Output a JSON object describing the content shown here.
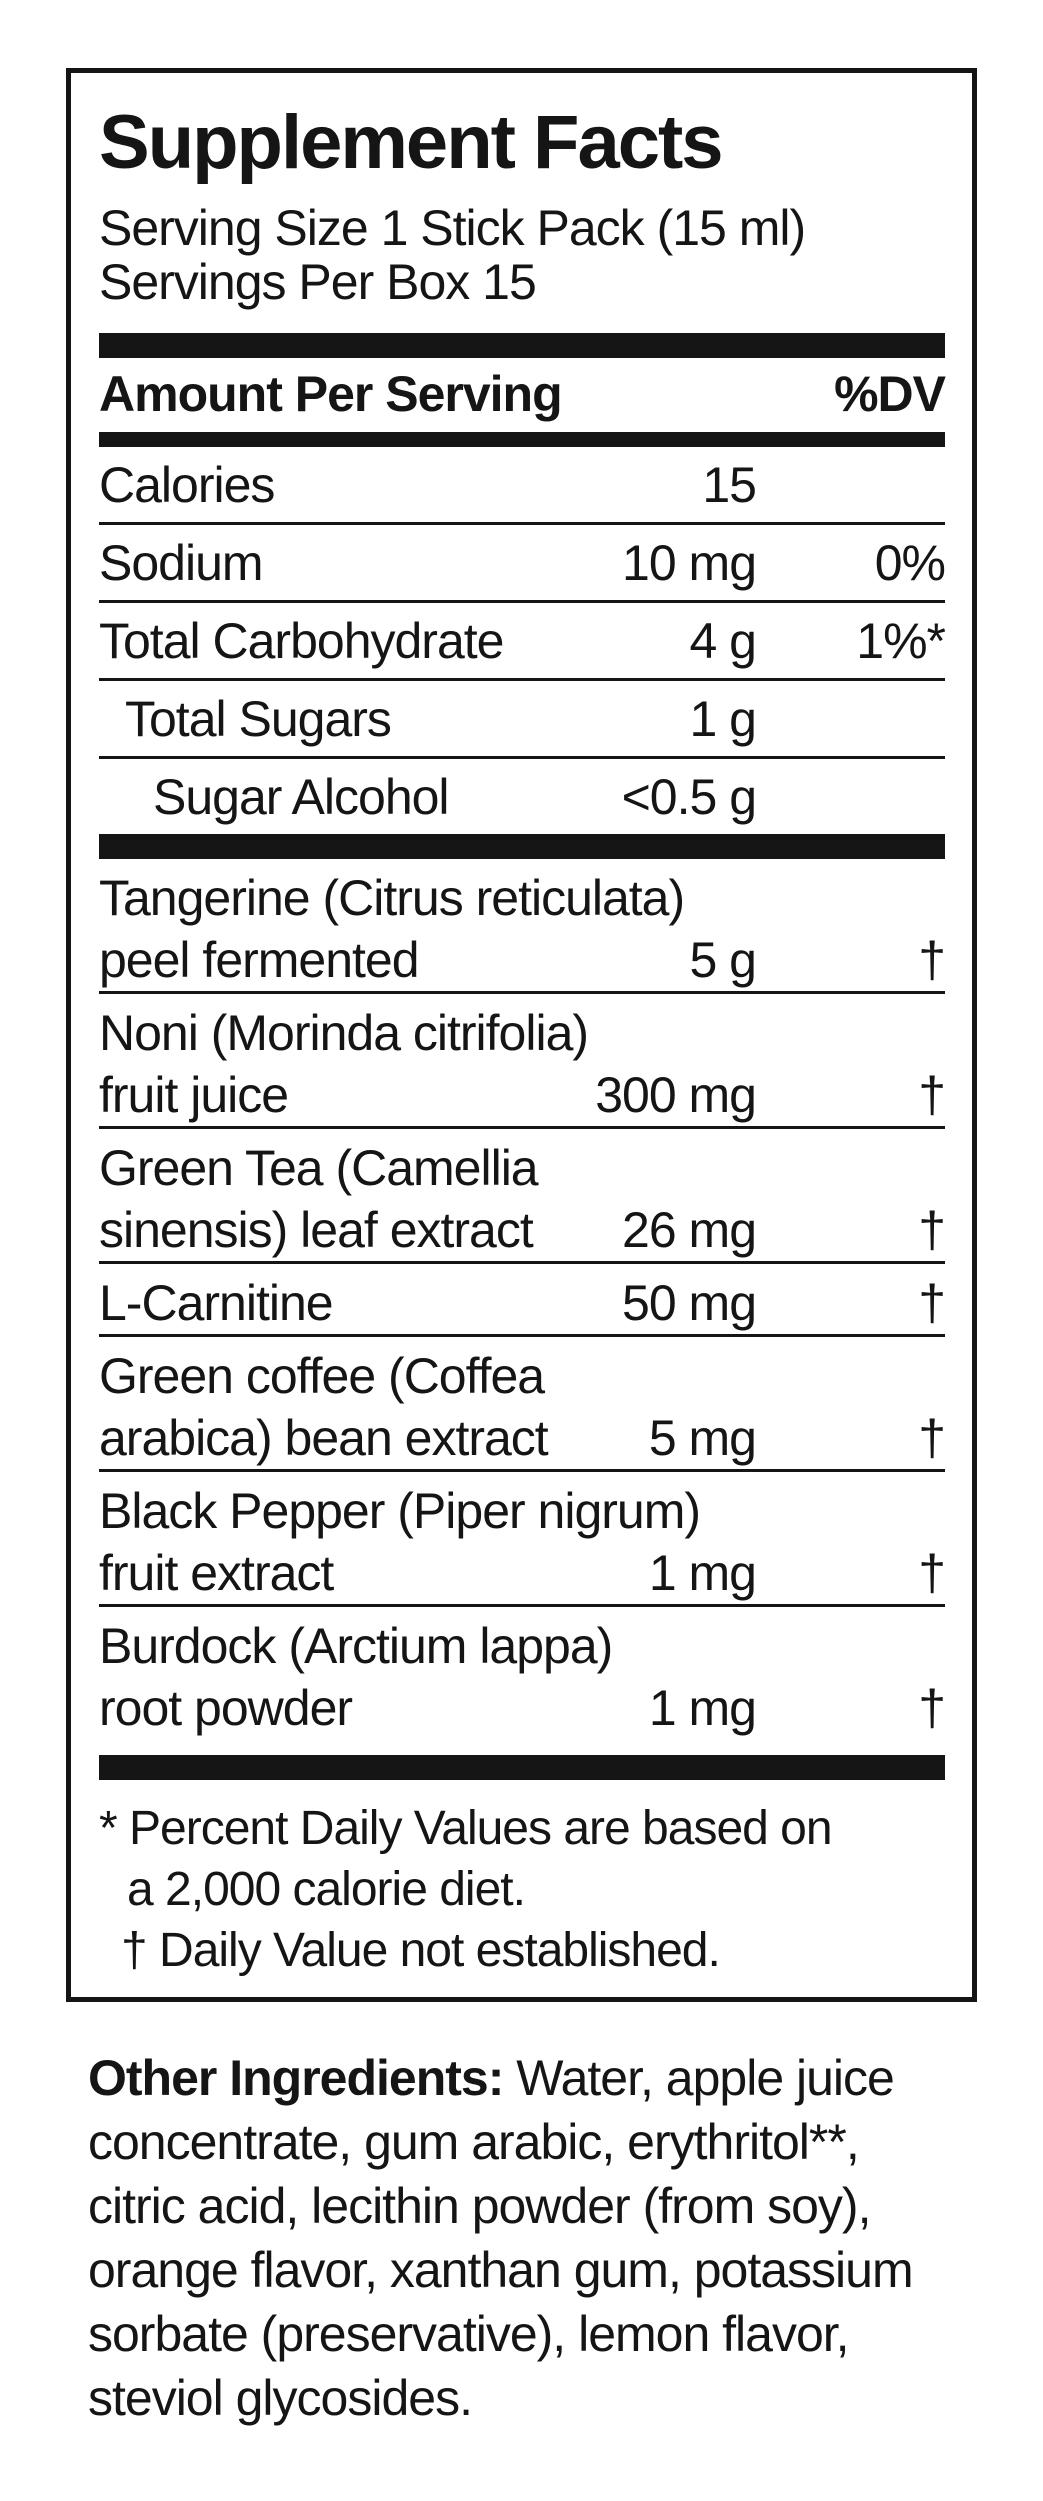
{
  "panel": {
    "title": "Supplement Facts",
    "serving_size": "Serving Size 1 Stick Pack (15 ml)",
    "servings_per_box": "Servings Per Box 15",
    "header": {
      "amount_label": "Amount Per Serving",
      "dv_label": "%DV"
    },
    "nutrients": [
      {
        "name": "Calories",
        "amount": "15",
        "dv": ""
      },
      {
        "name": "Sodium",
        "amount": "10 mg",
        "dv": "0%"
      },
      {
        "name": "Total Carbohydrate",
        "amount": "4 g",
        "dv": "1%*"
      },
      {
        "name": "Total Sugars",
        "amount": "1 g",
        "dv": ""
      },
      {
        "name": "Sugar Alcohol",
        "amount": "<0.5 g",
        "dv": ""
      }
    ],
    "ingredients": [
      {
        "line1": "Tangerine (Citrus reticulata)",
        "line2": "peel fermented",
        "amount": "5 g",
        "dv": "†"
      },
      {
        "line1": "Noni (Morinda citrifolia)",
        "line2": "fruit juice",
        "amount": "300 mg",
        "dv": "†"
      },
      {
        "line1": "Green Tea (Camellia",
        "line2": "sinensis) leaf extract",
        "amount": "26 mg",
        "dv": "†"
      },
      {
        "line1": "L-Carnitine",
        "line2": "",
        "amount": "50 mg",
        "dv": "†"
      },
      {
        "line1": "Green coffee (Coffea",
        "line2": "arabica) bean extract",
        "amount": "5 mg",
        "dv": "†"
      },
      {
        "line1": "Black Pepper (Piper nigrum)",
        "line2": "fruit extract",
        "amount": "1 mg",
        "dv": "†"
      },
      {
        "line1": "Burdock (Arctium lappa)",
        "line2": "root powder",
        "amount": "1 mg",
        "dv": "†"
      }
    ],
    "footnote": {
      "l1": "* Percent Daily Values are based on",
      "l2": "a 2,000 calorie diet.",
      "l3": "† Daily Value not established."
    }
  },
  "other_ingredients": {
    "label": "Other Ingredients:",
    "l1_rest": " Water, apple juice",
    "l2": "concentrate, gum arabic, erythritol**,",
    "l3": "citric acid, lecithin powder (from soy),",
    "l4": "orange flavor, xanthan gum, potassium",
    "l5": "sorbate (preservative), lemon flavor,",
    "l6": "steviol glycosides."
  }
}
